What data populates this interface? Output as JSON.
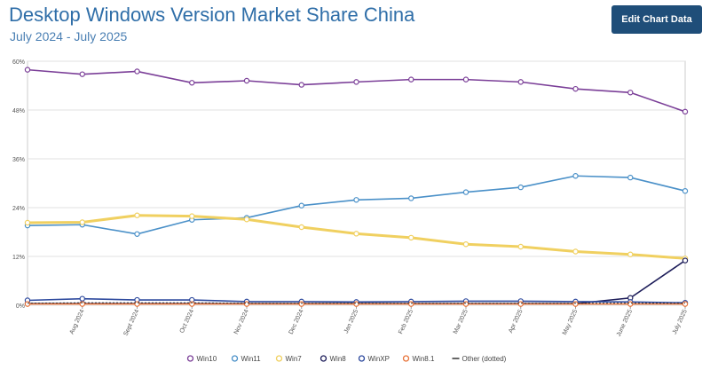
{
  "header": {
    "title": "Desktop Windows Version Market Share China",
    "subtitle": "July 2024 - July 2025",
    "edit_button_label": "Edit Chart Data"
  },
  "chart_data": {
    "type": "line",
    "title": "Desktop Windows Version Market Share China",
    "subtitle": "July 2024 - July 2025",
    "xlabel": "",
    "ylabel": "",
    "ylim": [
      0,
      60
    ],
    "y_ticks": [
      0,
      12,
      24,
      36,
      48,
      60
    ],
    "y_tick_labels": [
      "0%",
      "12%",
      "24%",
      "36%",
      "48%",
      "60%"
    ],
    "grid": true,
    "legend_position": "bottom",
    "categories": [
      "",
      "Aug 2024",
      "Sept 2024",
      "Oct 2024",
      "Nov 2024",
      "Dec 2024",
      "Jan 2025",
      "Feb 2025",
      "Mar 2025",
      "Apr 2025",
      "May 2025",
      "June 2025",
      "July 2025"
    ],
    "series": [
      {
        "name": "Win10",
        "color": "#7b3f98",
        "values": [
          57.9,
          56.8,
          57.5,
          54.7,
          55.2,
          54.2,
          54.9,
          55.5,
          55.5,
          54.9,
          53.2,
          52.3,
          47.6
        ]
      },
      {
        "name": "Win11",
        "color": "#4a90c8",
        "values": [
          19.6,
          19.8,
          17.5,
          21.0,
          21.5,
          24.5,
          25.9,
          26.3,
          27.8,
          29.0,
          31.8,
          31.4,
          28.1
        ]
      },
      {
        "name": "Win7",
        "color": "#f0d060",
        "values": [
          20.3,
          20.4,
          22.1,
          21.9,
          21.1,
          19.2,
          17.6,
          16.6,
          15.0,
          14.4,
          13.2,
          12.5,
          11.5
        ]
      },
      {
        "name": "Win8",
        "color": "#1e1e5a",
        "values": [
          0.4,
          0.4,
          0.4,
          0.4,
          0.4,
          0.4,
          0.4,
          0.4,
          0.4,
          0.4,
          0.4,
          1.8,
          11.0
        ]
      },
      {
        "name": "WinXP",
        "color": "#2e4a9e",
        "values": [
          1.2,
          1.6,
          1.3,
          1.3,
          0.9,
          0.9,
          0.8,
          0.9,
          1.0,
          1.0,
          0.9,
          0.8,
          0.6
        ]
      },
      {
        "name": "Win8.1",
        "color": "#e8743b",
        "values": [
          0.3,
          0.3,
          0.3,
          0.3,
          0.3,
          0.3,
          0.3,
          0.3,
          0.3,
          0.3,
          0.3,
          0.3,
          0.3
        ]
      },
      {
        "name": "Other (dotted)",
        "color": "#333333",
        "values": [
          0.5,
          0.6,
          0.6,
          0.6,
          0.5,
          0.5,
          0.5,
          0.5,
          0.5,
          0.5,
          0.5,
          0.5,
          0.5
        ]
      }
    ]
  }
}
